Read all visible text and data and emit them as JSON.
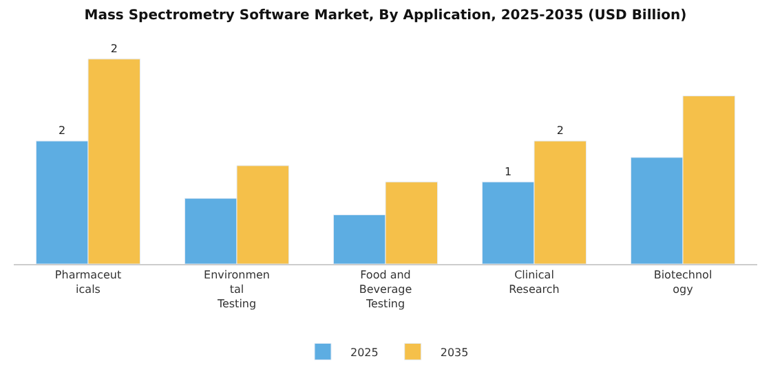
{
  "chart_data": {
    "type": "bar",
    "title": "Mass Spectrometry Software Market, By Application, 2025-2035 (USD Billion)",
    "categories": [
      "Pharmaceut\nicals",
      "Environmen\ntal\nTesting",
      "Food and\nBeverage\nTesting",
      "Clinical\nResearch",
      "Biotechnol\nogy"
    ],
    "series": [
      {
        "name": "2025",
        "color": "#5dade2",
        "values": [
          1.5,
          0.8,
          0.6,
          1.0,
          1.3
        ],
        "value_labels": [
          "2",
          null,
          null,
          "1",
          null
        ]
      },
      {
        "name": "2035",
        "color": "#f5c04a",
        "values": [
          2.5,
          1.2,
          1.0,
          1.5,
          2.05
        ],
        "value_labels": [
          "2",
          null,
          null,
          "2",
          null
        ]
      }
    ],
    "legend": "bottom",
    "tick_labels": "x"
  }
}
